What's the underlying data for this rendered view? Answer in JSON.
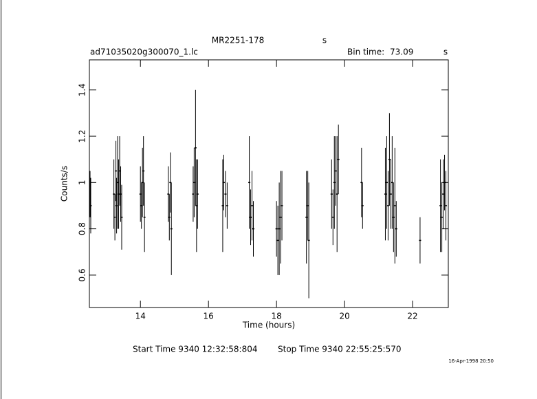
{
  "chart_data": {
    "type": "errorbar",
    "title": "MR2251-178",
    "title_unit": "s",
    "file_name": "ad71035020g300070_1.lc",
    "bin_time_label": "Bin time:",
    "bin_time": "73.09",
    "bin_time_unit": "s",
    "x_label": "Time (hours)",
    "y_label": "Counts/s",
    "start_time": "Start Time  9340 12:32:58:804",
    "stop_time": "Stop Time  9340 22:55:25:570",
    "date_stamp": "16-Apr-1998 20:50",
    "color": "#000000",
    "xlim": [
      12.5,
      23.05
    ],
    "ylim": [
      0.46,
      1.53
    ],
    "xticks": [
      14,
      16,
      18,
      20,
      22
    ],
    "yticks": [
      0.6,
      0.8,
      1,
      1.2,
      1.4
    ],
    "x": [
      12.52,
      12.54,
      13.22,
      13.25,
      13.28,
      13.3,
      13.33,
      13.36,
      13.39,
      13.42,
      13.45,
      14.0,
      14.03,
      14.06,
      14.09,
      14.12,
      14.82,
      14.85,
      14.88,
      14.91,
      15.55,
      15.58,
      15.62,
      15.65,
      15.68,
      16.42,
      16.45,
      16.5,
      16.55,
      17.2,
      17.24,
      17.28,
      17.32,
      18.0,
      18.04,
      18.08,
      18.12,
      18.16,
      18.88,
      18.92,
      18.95,
      19.62,
      19.66,
      19.7,
      19.74,
      19.78,
      19.82,
      20.5,
      20.53,
      21.2,
      21.24,
      21.28,
      21.32,
      21.36,
      21.4,
      21.44,
      21.48,
      21.52,
      22.22,
      22.82,
      22.86,
      22.9,
      22.94,
      22.98
    ],
    "values": [
      0.95,
      0.9,
      0.95,
      0.85,
      1.05,
      0.9,
      1.0,
      0.95,
      1.05,
      0.95,
      0.85,
      0.95,
      0.9,
      1.0,
      1.05,
      0.85,
      0.95,
      0.85,
      1.0,
      0.8,
      0.95,
      1.0,
      1.15,
      0.9,
      0.95,
      0.9,
      1.0,
      0.95,
      0.9,
      1.0,
      0.85,
      0.9,
      0.8,
      0.8,
      0.75,
      0.8,
      0.85,
      0.9,
      0.85,
      0.9,
      0.75,
      0.95,
      0.85,
      1.0,
      1.05,
      0.95,
      1.1,
      1.0,
      0.9,
      0.95,
      1.0,
      0.9,
      1.1,
      0.95,
      1.0,
      0.85,
      0.9,
      0.8,
      0.75,
      0.9,
      0.85,
      0.95,
      1.0,
      0.9
    ],
    "errors": [
      0.1,
      0.12,
      0.15,
      0.1,
      0.13,
      0.12,
      0.2,
      0.15,
      0.15,
      0.12,
      0.14,
      0.12,
      0.1,
      0.15,
      0.15,
      0.15,
      0.12,
      0.1,
      0.13,
      0.2,
      0.12,
      0.15,
      0.25,
      0.2,
      0.15,
      0.2,
      0.12,
      0.1,
      0.1,
      0.2,
      0.12,
      0.15,
      0.12,
      0.12,
      0.15,
      0.2,
      0.2,
      0.15,
      0.2,
      0.15,
      0.25,
      0.15,
      0.12,
      0.2,
      0.15,
      0.25,
      0.15,
      0.15,
      0.1,
      0.2,
      0.2,
      0.15,
      0.2,
      0.15,
      0.2,
      0.15,
      0.25,
      0.12,
      0.1,
      0.2,
      0.15,
      0.15,
      0.12,
      0.15
    ]
  }
}
